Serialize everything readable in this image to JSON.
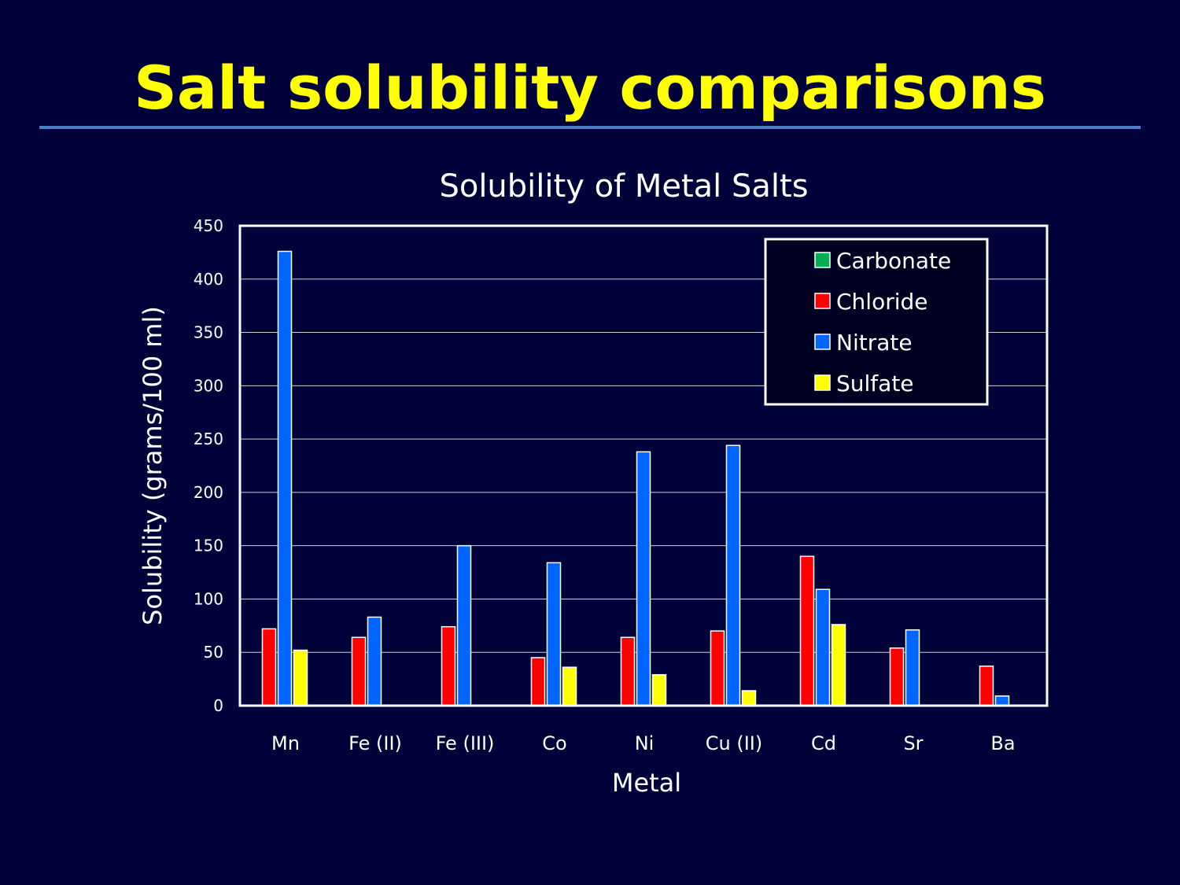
{
  "slide": {
    "title": "Salt solubility comparisons"
  },
  "colors": {
    "background": "#02023a",
    "title": "#ffff00",
    "rule": "#4a7ec8"
  },
  "chart_data": {
    "type": "bar",
    "title": "Solubility of Metal Salts",
    "xlabel": "Metal",
    "ylabel": "Solubility (grams/100 ml)",
    "ylim": [
      0,
      450
    ],
    "yticks": [
      0,
      50,
      100,
      150,
      200,
      250,
      300,
      350,
      400,
      450
    ],
    "grid": true,
    "legend_position": "top-right",
    "categories": [
      "Mn",
      "Fe (II)",
      "Fe (III)",
      "Co",
      "Ni",
      "Cu (II)",
      "Cd",
      "Sr",
      "Ba"
    ],
    "series": [
      {
        "name": "Carbonate",
        "color": "#00b050",
        "values": [
          0,
          0,
          0,
          0,
          0,
          0,
          0,
          0,
          0
        ]
      },
      {
        "name": "Chloride",
        "color": "#ff0000",
        "values": [
          72,
          64,
          74,
          45,
          64,
          70,
          140,
          54,
          37
        ]
      },
      {
        "name": "Nitrate",
        "color": "#0066ff",
        "values": [
          426,
          83,
          150,
          134,
          238,
          244,
          109,
          71,
          9
        ]
      },
      {
        "name": "Sulfate",
        "color": "#ffff00",
        "values": [
          52,
          0,
          0,
          36,
          29,
          14,
          76,
          0,
          0
        ]
      }
    ]
  }
}
